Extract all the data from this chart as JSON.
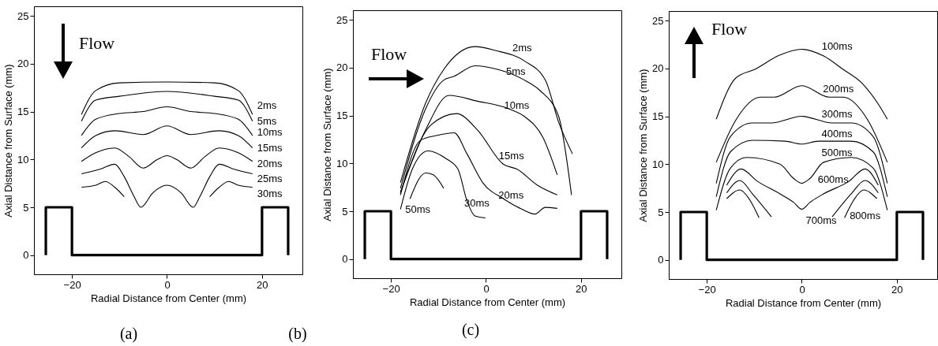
{
  "chart_data": [
    {
      "type": "line",
      "xlabel": "Radial Distance from Center (mm)",
      "ylabel": "Axial Distance from Surface (mm)",
      "xlim": [
        -28,
        28.5
      ],
      "ylim": [
        -2,
        26
      ],
      "xticks": [
        -20,
        0,
        20
      ],
      "yticks": [
        0,
        5,
        10,
        15,
        20,
        25
      ],
      "grid": false,
      "marker": "none",
      "line_style": "solid",
      "series": [
        {
          "color": "#000000",
          "x": [
            -25.5,
            -25.5,
            -20,
            -20,
            20,
            20,
            25.5,
            25.5
          ],
          "values": [
            0,
            5,
            5,
            0,
            0,
            5,
            5,
            0
          ]
        },
        {
          "name": "2ms",
          "color": "#000000",
          "x": [
            -18,
            -15,
            -10,
            0,
            10,
            15,
            18
          ],
          "values": [
            14.7,
            17.2,
            18,
            18.1,
            18,
            17.2,
            14.7
          ]
        },
        {
          "name": "5ms",
          "color": "#000000",
          "x": [
            -18,
            -15,
            -10,
            0,
            10,
            15,
            18
          ],
          "values": [
            14,
            16.2,
            16.6,
            17.1,
            16.6,
            16.2,
            14
          ]
        },
        {
          "name": "10ms",
          "color": "#000000",
          "x": [
            -18,
            -15,
            -10,
            -5,
            0,
            5,
            10,
            15,
            18
          ],
          "values": [
            12.5,
            14.2,
            14.8,
            15,
            15.5,
            15,
            14.8,
            14.2,
            12.5
          ]
        },
        {
          "name": "15ms",
          "color": "#000000",
          "x": [
            -18,
            -15,
            -11,
            -5,
            0,
            5,
            11,
            15,
            18
          ],
          "values": [
            11.2,
            12.5,
            13,
            12.6,
            13.5,
            12.6,
            13,
            12.5,
            11.2
          ]
        },
        {
          "name": "20ms",
          "color": "#000000",
          "x": [
            -18,
            -15,
            -11,
            -8,
            -5,
            -2,
            0,
            2,
            5,
            8,
            11,
            15,
            18
          ],
          "values": [
            9.8,
            10.7,
            11.2,
            10.3,
            9.1,
            10,
            10.4,
            10,
            9.1,
            10.3,
            11.2,
            10.7,
            9.8
          ]
        },
        {
          "name": "25ms",
          "color": "#000000",
          "x": [
            -18,
            -14,
            -11,
            -9,
            -7,
            -5.5,
            -3,
            0,
            3,
            5.5,
            7,
            9,
            11,
            14,
            18
          ],
          "values": [
            8.5,
            9,
            9.5,
            8.2,
            6.2,
            5,
            6.5,
            7.3,
            6.5,
            5,
            6.2,
            8.2,
            9.5,
            9,
            8.5
          ]
        },
        {
          "name": "30ms",
          "color": "#000000",
          "x": [
            -18,
            -15,
            -13,
            -11,
            -9,
            0,
            9,
            11,
            13,
            15,
            18
          ],
          "values": [
            7.1,
            7.3,
            7.7,
            7.1,
            6.1,
            null,
            6.1,
            7.1,
            7.7,
            7.3,
            7.1
          ]
        }
      ],
      "annotations": [
        "Flow",
        "(a)",
        "(b)"
      ]
    },
    {
      "type": "line",
      "xlabel": "Radial Distance from Center (mm)",
      "ylabel": "Axial Distance from Surface (mm)",
      "xlim": [
        -28,
        28.5
      ],
      "ylim": [
        -2,
        26
      ],
      "xticks": [
        -20,
        0,
        20
      ],
      "yticks": [
        0,
        5,
        10,
        15,
        20,
        25
      ],
      "grid": false,
      "marker": "none",
      "line_style": "solid",
      "series": [
        {
          "color": "#000000",
          "x": [
            -25.5,
            -25.5,
            -20,
            -20,
            20,
            20,
            25.5,
            25.5
          ],
          "values": [
            0,
            5,
            5,
            0,
            0,
            5,
            5,
            0
          ]
        },
        {
          "name": "2ms",
          "color": "#000000",
          "x": [
            -18,
            -12.7,
            -8.9,
            -2.3,
            2,
            8.1,
            12.5,
            15.3,
            18.2
          ],
          "values": [
            8,
            16.3,
            19.8,
            22.2,
            21.8,
            20.7,
            18.7,
            14.3,
            11
          ]
        },
        {
          "name": "5ms",
          "color": "#000000",
          "x": [
            -18,
            -12.7,
            -8.9,
            -6.7,
            -2.3,
            2.6,
            8.1,
            11.4,
            15.3,
            18
          ],
          "values": [
            7.4,
            15.7,
            18.7,
            19.1,
            20.2,
            19.8,
            18.7,
            17.6,
            14.9,
            6.7
          ]
        },
        {
          "name": "10ms",
          "color": "#000000",
          "x": [
            -18,
            -12.7,
            -7.8,
            -1.8,
            4.8,
            8.1,
            12,
            15
          ],
          "values": [
            7,
            13.5,
            17.1,
            16.5,
            15.7,
            14.9,
            12.7,
            8.8
          ]
        },
        {
          "name": "15ms",
          "color": "#000000",
          "x": [
            -18,
            -11.6,
            -6.2,
            -1.8,
            3.7,
            6.5,
            10.9,
            15
          ],
          "values": [
            6.9,
            14,
            15.2,
            13.5,
            9.9,
            9.4,
            7.7,
            6.7
          ]
        },
        {
          "name": "20ms",
          "color": "#000000",
          "x": [
            -18,
            -13.8,
            -10.5,
            -6.7,
            -4,
            -0.7,
            3.7,
            7.6,
            10.3,
            12.5,
            15
          ],
          "values": [
            6.7,
            12.4,
            12.9,
            13.2,
            11,
            8,
            6.3,
            5.2,
            4.7,
            5.4,
            5.3
          ]
        },
        {
          "name": "30ms",
          "color": "#000000",
          "x": [
            -18,
            -15.5,
            -12.2,
            -8.4,
            -5.9,
            -4,
            -2.3,
            -0.1
          ],
          "values": [
            5.2,
            9.4,
            11.3,
            10.5,
            9.4,
            6.1,
            4.5,
            4.3
          ]
        },
        {
          "name": "50ms",
          "color": "#000000",
          "x": [
            -16,
            -12.7,
            -11.1,
            -8.9
          ],
          "values": [
            6.3,
            9,
            8.8,
            7.4
          ]
        }
      ],
      "annotations": [
        "Flow",
        "(c)"
      ]
    },
    {
      "type": "line",
      "xlabel": "Radial Distance from Center (mm)",
      "ylabel": "Axial Distance from Surface (mm)",
      "xlim": [
        -28,
        28.5
      ],
      "ylim": [
        -2,
        26
      ],
      "xticks": [
        -20,
        0,
        20
      ],
      "yticks": [
        0,
        5,
        10,
        15,
        20,
        25
      ],
      "grid": false,
      "marker": "none",
      "line_style": "solid",
      "series": [
        {
          "color": "#000000",
          "x": [
            -25.5,
            -25.5,
            -20,
            -20,
            20,
            20,
            25.5,
            25.5
          ],
          "values": [
            0,
            5,
            5,
            0,
            0,
            5,
            5,
            0
          ]
        },
        {
          "name": "100ms",
          "color": "#000000",
          "x": [
            -18,
            -13.9,
            -9.9,
            -4.6,
            0,
            4.6,
            8.7,
            12.8,
            16.2,
            18
          ],
          "values": [
            14.7,
            19,
            19.9,
            21.4,
            22,
            21.3,
            19.9,
            18.4,
            16.2,
            14.7
          ]
        },
        {
          "name": "200ms",
          "color": "#000000",
          "x": [
            -18,
            -13.9,
            -8.7,
            -5.8,
            0,
            5.8,
            8.7,
            13.9,
            18
          ],
          "values": [
            10.2,
            14.6,
            17,
            17,
            18.2,
            17,
            17,
            14.6,
            10.2
          ]
        },
        {
          "name": "300ms",
          "color": "#000000",
          "x": [
            -18,
            -15,
            -10.4,
            -6.4,
            0,
            6.4,
            10.4,
            15,
            18
          ],
          "values": [
            8,
            12.9,
            14.3,
            14.3,
            15,
            14.3,
            14.3,
            12.9,
            8
          ]
        },
        {
          "name": "400ms",
          "color": "#000000",
          "x": [
            -18,
            -15,
            -10.4,
            -3.5,
            0,
            3.5,
            10.4,
            15,
            18
          ],
          "values": [
            6.6,
            11.3,
            12.5,
            12.4,
            12.1,
            12.4,
            12.4,
            11.3,
            6.6
          ]
        },
        {
          "name": "500ms",
          "color": "#000000",
          "x": [
            -18,
            -15,
            -11.6,
            -4.6,
            -1.7,
            0,
            1.7,
            4.6,
            10.4,
            15,
            18
          ],
          "values": [
            5.2,
            9.6,
            10.7,
            10,
            8.5,
            8,
            8.5,
            10.2,
            10.7,
            9.6,
            5.2
          ]
        },
        {
          "name": "600ms",
          "color": "#000000",
          "x": [
            -15.8,
            -12.8,
            -9.3,
            -4.6,
            -1.7,
            0,
            1.7,
            4.6,
            9.9,
            13.3,
            16.1
          ],
          "values": [
            7.8,
            9.5,
            8.2,
            6.9,
            6,
            5.3,
            6,
            6.9,
            8.2,
            9.5,
            7.8
          ]
        },
        {
          "name": "700ms",
          "color": "#000000",
          "x": [
            -15.8,
            -13,
            -10.4,
            -6.4,
            0,
            6.4,
            10.4,
            13.3,
            16.1
          ],
          "values": [
            7,
            8.3,
            6.9,
            4.5,
            null,
            4.5,
            6.9,
            8.3,
            7
          ]
        },
        {
          "name": "800ms",
          "color": "#000000",
          "x": [
            -15.8,
            -13,
            -11,
            -9,
            0,
            9,
            11,
            13,
            15.8
          ],
          "values": [
            6.4,
            7.3,
            6.3,
            4.4,
            null,
            4.4,
            6.3,
            7.3,
            6.4
          ]
        }
      ],
      "annotations": [
        "Flow"
      ]
    }
  ]
}
